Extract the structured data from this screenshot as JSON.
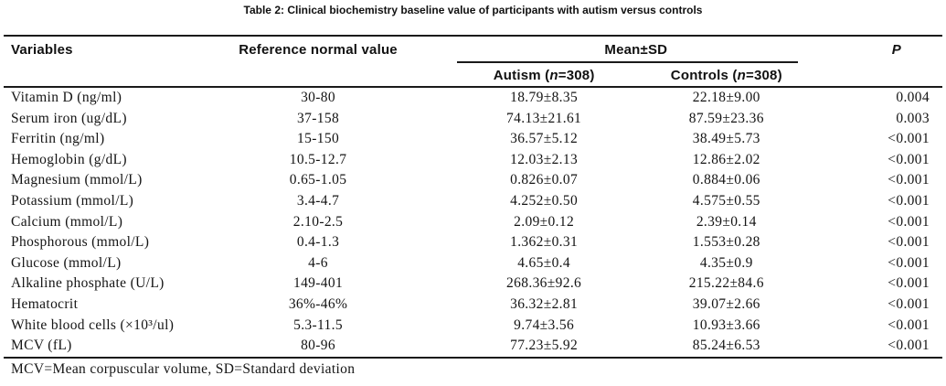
{
  "title": "Table 2: Clinical biochemistry baseline value of participants with autism versus controls",
  "table": {
    "headers": {
      "variables": "Variables",
      "reference": "Reference normal value",
      "mean_sd": "Mean±SD",
      "autism": {
        "pre": "Autism (",
        "n": "n",
        "post": "=308)"
      },
      "controls": {
        "pre": "Controls (",
        "n": "n",
        "post": "=308)"
      },
      "p": "P"
    },
    "rows": [
      {
        "variable": "Vitamin D (ng/ml)",
        "reference": "30-80",
        "autism": "18.79±8.35",
        "controls": "22.18±9.00",
        "p": "0.004"
      },
      {
        "variable": "Serum iron (ug/dL)",
        "reference": "37-158",
        "autism": "74.13±21.61",
        "controls": "87.59±23.36",
        "p": "0.003"
      },
      {
        "variable": "Ferritin (ng/ml)",
        "reference": "15-150",
        "autism": "36.57±5.12",
        "controls": "38.49±5.73",
        "p": "<0.001"
      },
      {
        "variable": "Hemoglobin (g/dL)",
        "reference": "10.5-12.7",
        "autism": "12.03±2.13",
        "controls": "12.86±2.02",
        "p": "<0.001"
      },
      {
        "variable": "Magnesium (mmol/L)",
        "reference": "0.65-1.05",
        "autism": "0.826±0.07",
        "controls": "0.884±0.06",
        "p": "<0.001"
      },
      {
        "variable": "Potassium (mmol/L)",
        "reference": "3.4-4.7",
        "autism": "4.252±0.50",
        "controls": "4.575±0.55",
        "p": "<0.001"
      },
      {
        "variable": "Calcium (mmol/L)",
        "reference": "2.10-2.5",
        "autism": "2.09±0.12",
        "controls": "2.39±0.14",
        "p": "<0.001"
      },
      {
        "variable": "Phosphorous (mmol/L)",
        "reference": "0.4-1.3",
        "autism": "1.362±0.31",
        "controls": "1.553±0.28",
        "p": "<0.001"
      },
      {
        "variable": "Glucose (mmol/L)",
        "reference": "4-6",
        "autism": "4.65±0.4",
        "controls": "4.35±0.9",
        "p": "<0.001"
      },
      {
        "variable": "Alkaline phosphate (U/L)",
        "reference": "149-401",
        "autism": "268.36±92.6",
        "controls": "215.22±84.6",
        "p": "<0.001"
      },
      {
        "variable": "Hematocrit",
        "reference": "36%-46%",
        "autism": "36.32±2.81",
        "controls": "39.07±2.66",
        "p": "<0.001"
      },
      {
        "variable": "White blood cells (×10³/ul)",
        "reference": "5.3-11.5",
        "autism": "9.74±3.56",
        "controls": "10.93±3.66",
        "p": "<0.001"
      },
      {
        "variable": "MCV (fL)",
        "reference": "80-96",
        "autism": "77.23±5.92",
        "controls": "85.24±6.53",
        "p": "<0.001"
      }
    ]
  },
  "footnote": "MCV=Mean corpuscular volume, SD=Standard deviation"
}
